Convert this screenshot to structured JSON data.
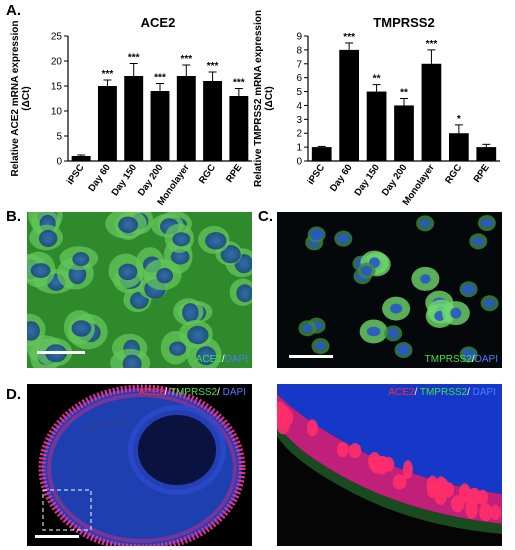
{
  "panel_labels": {
    "a": "A.",
    "b": "B.",
    "c": "C.",
    "d": "D."
  },
  "chart_data": [
    {
      "type": "bar",
      "title": "ACE2",
      "ylabel": "Relative ACE2 mRNA expression",
      "ylabel2": "(ΔCt)",
      "categories": [
        "iPSC",
        "Day 60",
        "Day 150",
        "Day 200",
        "Monolayer",
        "RGC",
        "RPE"
      ],
      "values": [
        1,
        15,
        17,
        14,
        17,
        16,
        13
      ],
      "errors": [
        0.2,
        1.2,
        2.5,
        1.5,
        2.2,
        1.8,
        1.5
      ],
      "significance": [
        "",
        "***",
        "***",
        "***",
        "***",
        "***",
        "***"
      ],
      "ylim": [
        0,
        25
      ],
      "yticks": [
        0,
        5,
        10,
        15,
        20,
        25
      ],
      "bar_color": "#000000"
    },
    {
      "type": "bar",
      "title": "TMPRSS2",
      "ylabel": "Relative TMPRSS2 mRNA expression",
      "ylabel2": "(ΔCt)",
      "categories": [
        "iPSC",
        "Day 60",
        "Day 150",
        "Day 200",
        "Monolayer",
        "RGC",
        "RPE"
      ],
      "values": [
        1,
        8,
        5,
        4,
        7,
        2,
        1
      ],
      "errors": [
        0.05,
        0.5,
        0.5,
        0.5,
        1.0,
        0.6,
        0.2
      ],
      "significance": [
        "",
        "***",
        "**",
        "**",
        "***",
        "*",
        ""
      ],
      "ylim": [
        0,
        9
      ],
      "yticks": [
        0,
        1,
        2,
        3,
        4,
        5,
        6,
        7,
        8,
        9
      ],
      "bar_color": "#000000"
    }
  ],
  "images": {
    "b": {
      "caption_a": "ACE2",
      "caption_sep": "/",
      "caption_b": "DAPI"
    },
    "c": {
      "caption_a": "TMPRSS2",
      "caption_sep": "/",
      "caption_b": "DAPI"
    },
    "d_left": {
      "caption_a": "ACE2",
      "caption_sep1": "/ ",
      "caption_b": "TMPRSS2",
      "caption_sep2": "/ ",
      "caption_c": "DAPI"
    },
    "d_right": {
      "caption_a": "ACE2",
      "caption_sep1": "/ ",
      "caption_b": "TMPRSS2",
      "caption_sep2": "/ ",
      "caption_c": "DAPI"
    }
  },
  "colors": {
    "ace2_red": "#ff2a2a",
    "tmprss2_green": "#3fe24a",
    "dapi_blue": "#4a7dff",
    "cell_green": "#58c24a",
    "background": "#000000"
  }
}
